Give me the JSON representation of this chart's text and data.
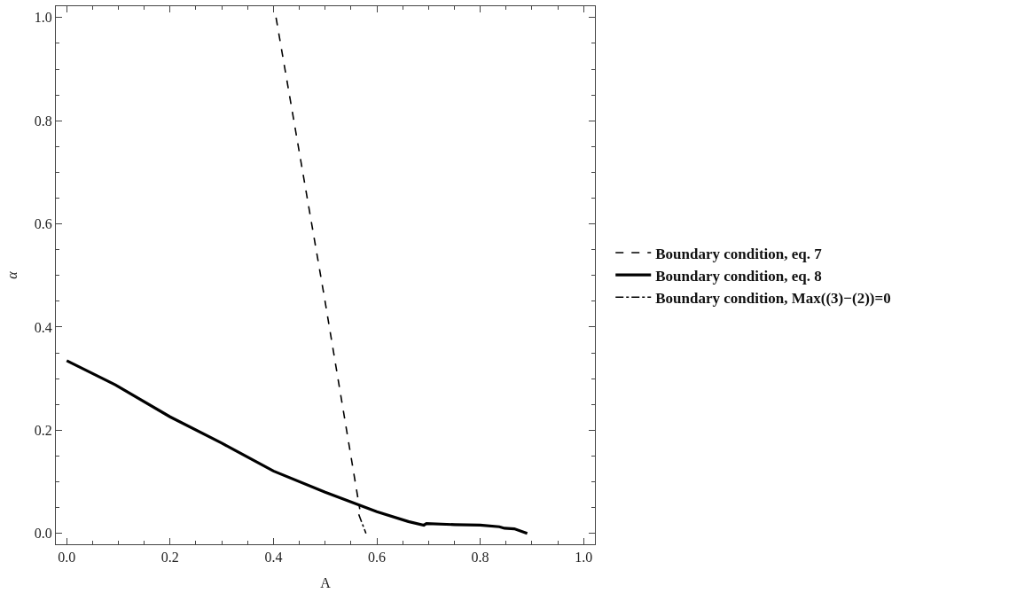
{
  "chart_data": {
    "type": "line",
    "xlabel": "A",
    "ylabel": "α",
    "xlim": [
      -0.021,
      1.022
    ],
    "ylim": [
      -0.021,
      1.022
    ],
    "xticks": [
      {
        "value": 0,
        "label": "0.0"
      },
      0.2,
      0.4,
      0.6,
      0.8,
      {
        "value": 1,
        "label": "1.0"
      }
    ],
    "yticks": [
      {
        "value": 0,
        "label": "0.0"
      },
      0.2,
      0.4,
      0.6,
      0.8,
      {
        "value": 1,
        "label": "1.0"
      }
    ],
    "legend": "right",
    "marker": "none",
    "series": [
      {
        "name": "Boundary condition, eq. 7",
        "color": "#000000",
        "line_style": "dashed",
        "x": [
          0.405,
          0.499,
          0.567
        ],
        "values": [
          1.0,
          0.455,
          0.047
        ]
      },
      {
        "name": "Boundary condition, eq. 8",
        "color": "#000000",
        "line_style": "solid",
        "x": [
          0,
          0.094,
          0.2,
          0.3,
          0.4,
          0.5,
          0.6,
          0.661,
          0.691,
          0.696,
          0.751,
          0.8,
          0.837,
          0.847,
          0.866,
          0.891
        ],
        "values": [
          0.335,
          0.288,
          0.226,
          0.175,
          0.121,
          0.08,
          0.042,
          0.023,
          0.016,
          0.019,
          0.017,
          0.016,
          0.013,
          0.01,
          0.009,
          0.0
        ]
      },
      {
        "name": "Boundary condition, Max((3)−(2))=0",
        "color": "#000000",
        "line_style": "dashdot",
        "x": [
          0.565,
          0.579
        ],
        "values": [
          0.037,
          0.0
        ]
      }
    ]
  }
}
